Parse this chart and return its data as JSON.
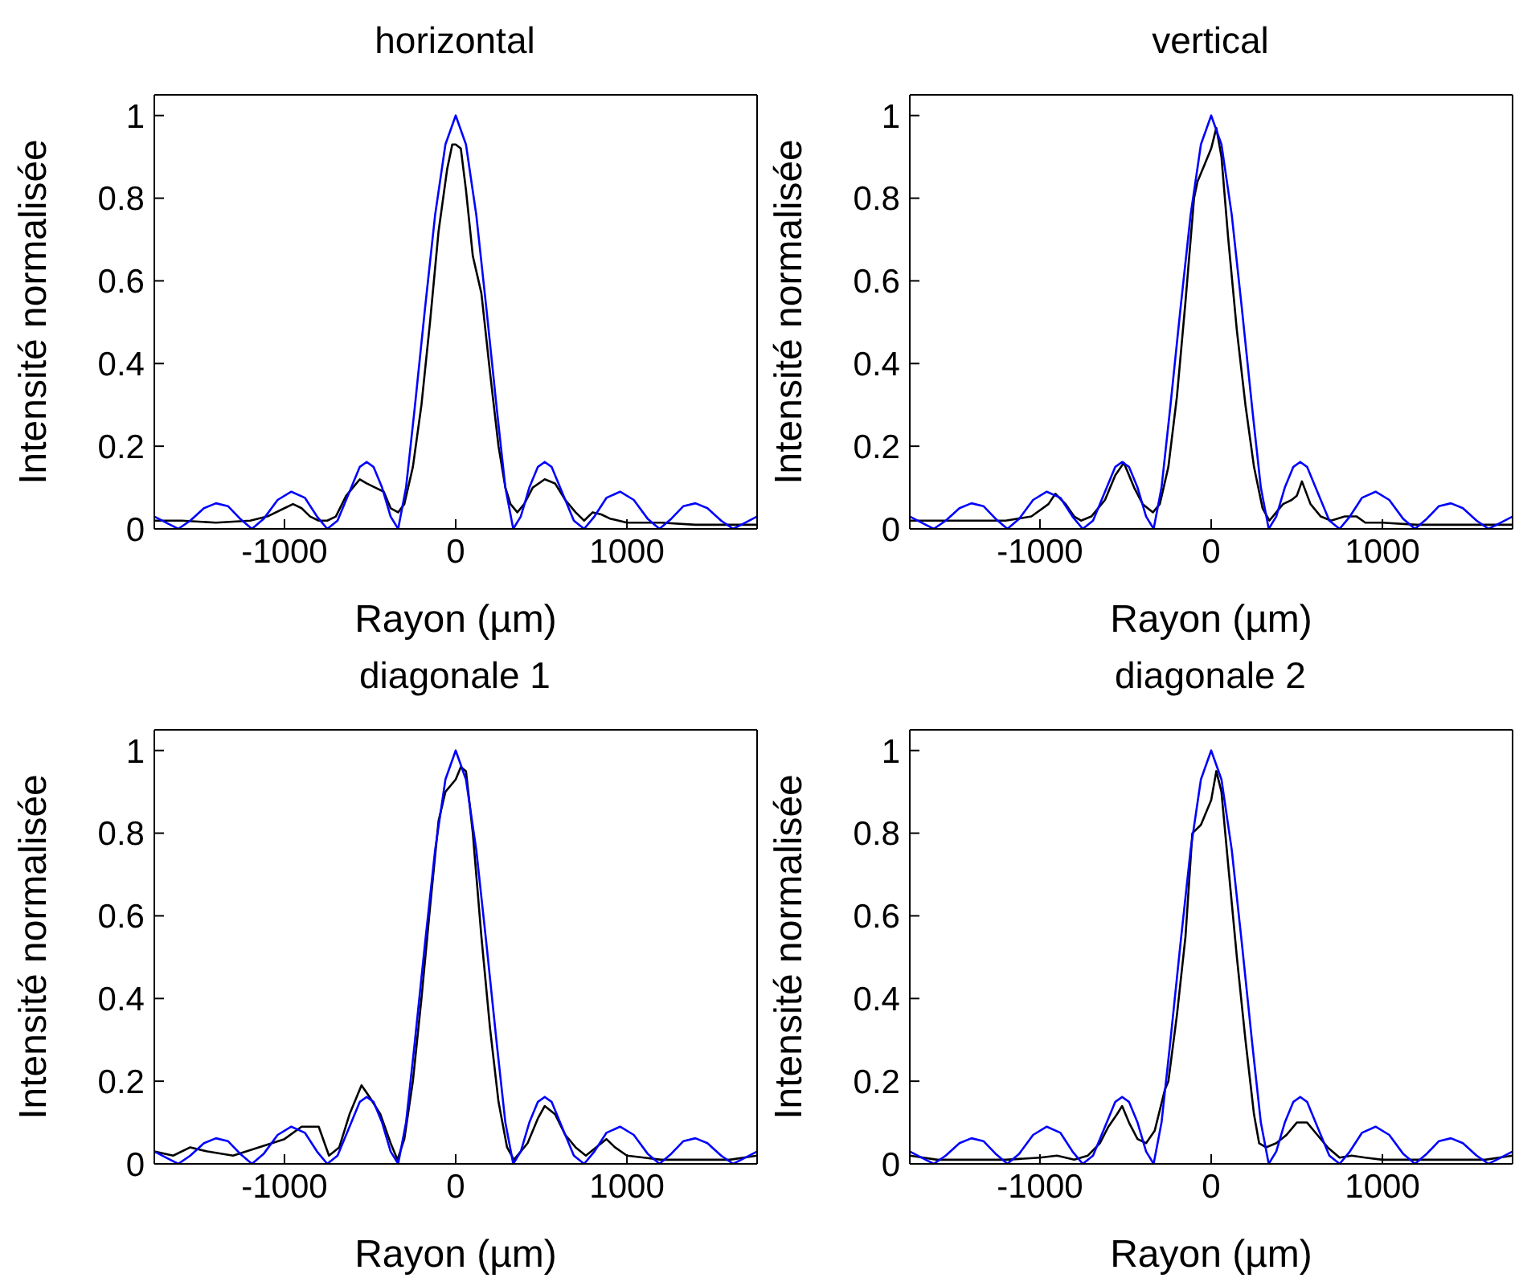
{
  "chart_data": [
    {
      "type": "line",
      "title": "horizontal",
      "xlabel": "Rayon (µm)",
      "ylabel": "Intensité normalisée",
      "xlim": [
        -1760,
        1760
      ],
      "xticks": [
        -1000,
        0,
        1000
      ],
      "ylim": [
        0,
        1.05
      ],
      "yticks": [
        0,
        0.2,
        0.4,
        0.6,
        0.8,
        1
      ],
      "grid": false,
      "marker": "none",
      "line_style": "solid",
      "series": [
        {
          "color": "#000000",
          "x": [
            -1760,
            -1600,
            -1400,
            -1200,
            -1100,
            -1000,
            -950,
            -900,
            -850,
            -800,
            -750,
            -700,
            -640,
            -600,
            -560,
            -520,
            -470,
            -420,
            -380,
            -336,
            -300,
            -250,
            -200,
            -150,
            -100,
            -50,
            -20,
            0,
            30,
            60,
            100,
            150,
            200,
            250,
            290,
            320,
            360,
            400,
            450,
            520,
            580,
            640,
            700,
            750,
            800,
            850,
            900,
            1000,
            1200,
            1400,
            1600,
            1760
          ],
          "values": [
            0.02,
            0.02,
            0.015,
            0.02,
            0.03,
            0.05,
            0.06,
            0.05,
            0.03,
            0.02,
            0.02,
            0.03,
            0.08,
            0.1,
            0.12,
            0.11,
            0.1,
            0.09,
            0.05,
            0.04,
            0.06,
            0.15,
            0.3,
            0.5,
            0.72,
            0.87,
            0.93,
            0.93,
            0.92,
            0.82,
            0.66,
            0.57,
            0.38,
            0.2,
            0.1,
            0.06,
            0.04,
            0.06,
            0.1,
            0.12,
            0.11,
            0.07,
            0.04,
            0.02,
            0.04,
            0.035,
            0.025,
            0.015,
            0.015,
            0.01,
            0.01,
            0.01
          ]
        },
        {
          "color": "#0000ff",
          "x": [
            -1760,
            -1690,
            -1620,
            -1550,
            -1470,
            -1400,
            -1330,
            -1260,
            -1190,
            -1120,
            -1040,
            -960,
            -880,
            -810,
            -750,
            -690,
            -620,
            -560,
            -520,
            -480,
            -430,
            -380,
            -336,
            -290,
            -240,
            -180,
            -120,
            -60,
            0,
            60,
            120,
            180,
            240,
            290,
            336,
            380,
            430,
            480,
            520,
            560,
            620,
            690,
            750,
            810,
            880,
            960,
            1040,
            1120,
            1190,
            1260,
            1330,
            1400,
            1470,
            1550,
            1620,
            1690,
            1760
          ],
          "values": [
            0.03,
            0.015,
            0,
            0.02,
            0.05,
            0.062,
            0.055,
            0.025,
            0,
            0.025,
            0.07,
            0.09,
            0.075,
            0.03,
            0,
            0.02,
            0.09,
            0.15,
            0.162,
            0.15,
            0.1,
            0.03,
            0,
            0.1,
            0.29,
            0.53,
            0.76,
            0.93,
            1,
            0.93,
            0.76,
            0.53,
            0.29,
            0.1,
            0,
            0.03,
            0.1,
            0.15,
            0.162,
            0.15,
            0.09,
            0.02,
            0,
            0.03,
            0.075,
            0.09,
            0.07,
            0.025,
            0,
            0.025,
            0.055,
            0.062,
            0.05,
            0.02,
            0,
            0.015,
            0.03
          ]
        }
      ]
    },
    {
      "type": "line",
      "title": "vertical",
      "xlabel": "Rayon (µm)",
      "ylabel": "Intensité normalisée",
      "xlim": [
        -1760,
        1760
      ],
      "xticks": [
        -1000,
        0,
        1000
      ],
      "ylim": [
        0,
        1.05
      ],
      "yticks": [
        0,
        0.2,
        0.4,
        0.6,
        0.8,
        1
      ],
      "grid": false,
      "marker": "none",
      "line_style": "solid",
      "series": [
        {
          "color": "#000000",
          "x": [
            -1760,
            -1400,
            -1200,
            -1050,
            -950,
            -910,
            -850,
            -800,
            -760,
            -700,
            -620,
            -560,
            -510,
            -450,
            -400,
            -340,
            -300,
            -250,
            -200,
            -150,
            -100,
            -80,
            -40,
            0,
            30,
            60,
            100,
            150,
            200,
            250,
            300,
            340,
            380,
            420,
            470,
            500,
            530,
            580,
            640,
            700,
            780,
            850,
            900,
            1000,
            1200,
            1400,
            1600,
            1760
          ],
          "values": [
            0.02,
            0.02,
            0.02,
            0.03,
            0.06,
            0.085,
            0.06,
            0.03,
            0.02,
            0.03,
            0.07,
            0.13,
            0.16,
            0.1,
            0.06,
            0.04,
            0.06,
            0.15,
            0.32,
            0.55,
            0.8,
            0.84,
            0.88,
            0.92,
            0.97,
            0.9,
            0.7,
            0.48,
            0.3,
            0.15,
            0.05,
            0.02,
            0.04,
            0.06,
            0.07,
            0.08,
            0.115,
            0.06,
            0.03,
            0.02,
            0.03,
            0.03,
            0.015,
            0.015,
            0.01,
            0.01,
            0.01,
            0.01
          ]
        },
        {
          "color": "#0000ff",
          "x": [
            -1760,
            -1690,
            -1620,
            -1550,
            -1470,
            -1400,
            -1330,
            -1260,
            -1190,
            -1120,
            -1040,
            -960,
            -880,
            -810,
            -750,
            -690,
            -620,
            -560,
            -520,
            -480,
            -430,
            -380,
            -336,
            -290,
            -240,
            -180,
            -120,
            -60,
            0,
            60,
            120,
            180,
            240,
            290,
            336,
            380,
            430,
            480,
            520,
            560,
            620,
            690,
            750,
            810,
            880,
            960,
            1040,
            1120,
            1190,
            1260,
            1330,
            1400,
            1470,
            1550,
            1620,
            1690,
            1760
          ],
          "values": [
            0.03,
            0.015,
            0,
            0.02,
            0.05,
            0.062,
            0.055,
            0.025,
            0,
            0.025,
            0.07,
            0.09,
            0.075,
            0.03,
            0,
            0.02,
            0.09,
            0.15,
            0.162,
            0.15,
            0.1,
            0.03,
            0,
            0.1,
            0.29,
            0.53,
            0.76,
            0.93,
            1,
            0.93,
            0.76,
            0.53,
            0.29,
            0.1,
            0,
            0.03,
            0.1,
            0.15,
            0.162,
            0.15,
            0.09,
            0.02,
            0,
            0.03,
            0.075,
            0.09,
            0.07,
            0.025,
            0,
            0.025,
            0.055,
            0.062,
            0.05,
            0.02,
            0,
            0.015,
            0.03
          ]
        }
      ]
    },
    {
      "type": "line",
      "title": "diagonale 1",
      "xlabel": "Rayon (µm)",
      "ylabel": "Intensité normalisée",
      "xlim": [
        -1760,
        1760
      ],
      "xticks": [
        -1000,
        0,
        1000
      ],
      "ylim": [
        0,
        1.05
      ],
      "yticks": [
        0,
        0.2,
        0.4,
        0.6,
        0.8,
        1
      ],
      "grid": false,
      "marker": "none",
      "line_style": "solid",
      "series": [
        {
          "color": "#000000",
          "x": [
            -1760,
            -1650,
            -1550,
            -1450,
            -1300,
            -1150,
            -1000,
            -900,
            -800,
            -740,
            -680,
            -620,
            -550,
            -500,
            -440,
            -380,
            -340,
            -300,
            -250,
            -200,
            -150,
            -100,
            -60,
            0,
            30,
            60,
            100,
            150,
            200,
            250,
            300,
            340,
            380,
            420,
            480,
            520,
            580,
            640,
            700,
            760,
            820,
            880,
            930,
            1000,
            1100,
            1200,
            1400,
            1600,
            1760
          ],
          "values": [
            0.03,
            0.02,
            0.04,
            0.03,
            0.02,
            0.04,
            0.06,
            0.09,
            0.09,
            0.02,
            0.04,
            0.12,
            0.19,
            0.16,
            0.12,
            0.05,
            0.01,
            0.06,
            0.2,
            0.4,
            0.62,
            0.83,
            0.9,
            0.93,
            0.96,
            0.95,
            0.8,
            0.55,
            0.33,
            0.15,
            0.04,
            0.01,
            0.03,
            0.05,
            0.11,
            0.14,
            0.12,
            0.07,
            0.04,
            0.02,
            0.04,
            0.06,
            0.04,
            0.02,
            0.015,
            0.01,
            0.01,
            0.01,
            0.02
          ]
        },
        {
          "color": "#0000ff",
          "x": [
            -1760,
            -1690,
            -1620,
            -1550,
            -1470,
            -1400,
            -1330,
            -1260,
            -1190,
            -1120,
            -1040,
            -960,
            -880,
            -810,
            -750,
            -690,
            -620,
            -560,
            -520,
            -480,
            -430,
            -380,
            -336,
            -290,
            -240,
            -180,
            -120,
            -60,
            0,
            60,
            120,
            180,
            240,
            290,
            336,
            380,
            430,
            480,
            520,
            560,
            620,
            690,
            750,
            810,
            880,
            960,
            1040,
            1120,
            1190,
            1260,
            1330,
            1400,
            1470,
            1550,
            1620,
            1690,
            1760
          ],
          "values": [
            0.03,
            0.015,
            0,
            0.02,
            0.05,
            0.062,
            0.055,
            0.025,
            0,
            0.025,
            0.07,
            0.09,
            0.075,
            0.03,
            0,
            0.02,
            0.09,
            0.15,
            0.162,
            0.15,
            0.1,
            0.03,
            0,
            0.1,
            0.29,
            0.53,
            0.76,
            0.93,
            1,
            0.93,
            0.76,
            0.53,
            0.29,
            0.1,
            0,
            0.03,
            0.1,
            0.15,
            0.162,
            0.15,
            0.09,
            0.02,
            0,
            0.03,
            0.075,
            0.09,
            0.07,
            0.025,
            0,
            0.025,
            0.055,
            0.062,
            0.05,
            0.02,
            0,
            0.015,
            0.03
          ]
        }
      ]
    },
    {
      "type": "line",
      "title": "diagonale 2",
      "xlabel": "Rayon (µm)",
      "ylabel": "Intensité normalisée",
      "xlim": [
        -1760,
        1760
      ],
      "xticks": [
        -1000,
        0,
        1000
      ],
      "ylim": [
        0,
        1.05
      ],
      "yticks": [
        0,
        0.2,
        0.4,
        0.6,
        0.8,
        1
      ],
      "grid": false,
      "marker": "none",
      "line_style": "solid",
      "series": [
        {
          "color": "#000000",
          "x": [
            -1760,
            -1600,
            -1400,
            -1200,
            -1000,
            -900,
            -800,
            -720,
            -650,
            -600,
            -550,
            -520,
            -480,
            -430,
            -380,
            -330,
            -270,
            -250,
            -200,
            -150,
            -110,
            -60,
            0,
            30,
            60,
            100,
            150,
            200,
            250,
            280,
            320,
            380,
            440,
            500,
            560,
            620,
            680,
            750,
            820,
            900,
            1000,
            1200,
            1400,
            1600,
            1760
          ],
          "values": [
            0.02,
            0.01,
            0.01,
            0.01,
            0.015,
            0.02,
            0.01,
            0.02,
            0.05,
            0.09,
            0.12,
            0.14,
            0.1,
            0.06,
            0.05,
            0.08,
            0.18,
            0.2,
            0.36,
            0.55,
            0.8,
            0.82,
            0.88,
            0.95,
            0.9,
            0.72,
            0.5,
            0.3,
            0.12,
            0.05,
            0.04,
            0.05,
            0.07,
            0.1,
            0.1,
            0.07,
            0.04,
            0.015,
            0.02,
            0.015,
            0.01,
            0.01,
            0.01,
            0.01,
            0.02
          ]
        },
        {
          "color": "#0000ff",
          "x": [
            -1760,
            -1690,
            -1620,
            -1550,
            -1470,
            -1400,
            -1330,
            -1260,
            -1190,
            -1120,
            -1040,
            -960,
            -880,
            -810,
            -750,
            -690,
            -620,
            -560,
            -520,
            -480,
            -430,
            -380,
            -336,
            -290,
            -240,
            -180,
            -120,
            -60,
            0,
            60,
            120,
            180,
            240,
            290,
            336,
            380,
            430,
            480,
            520,
            560,
            620,
            690,
            750,
            810,
            880,
            960,
            1040,
            1120,
            1190,
            1260,
            1330,
            1400,
            1470,
            1550,
            1620,
            1690,
            1760
          ],
          "values": [
            0.03,
            0.015,
            0,
            0.02,
            0.05,
            0.062,
            0.055,
            0.025,
            0,
            0.025,
            0.07,
            0.09,
            0.075,
            0.03,
            0,
            0.02,
            0.09,
            0.15,
            0.162,
            0.15,
            0.1,
            0.03,
            0,
            0.1,
            0.29,
            0.53,
            0.76,
            0.93,
            1,
            0.93,
            0.76,
            0.53,
            0.29,
            0.1,
            0,
            0.03,
            0.1,
            0.15,
            0.162,
            0.15,
            0.09,
            0.02,
            0,
            0.03,
            0.075,
            0.09,
            0.07,
            0.025,
            0,
            0.025,
            0.055,
            0.062,
            0.05,
            0.02,
            0,
            0.015,
            0.03
          ]
        }
      ]
    }
  ]
}
